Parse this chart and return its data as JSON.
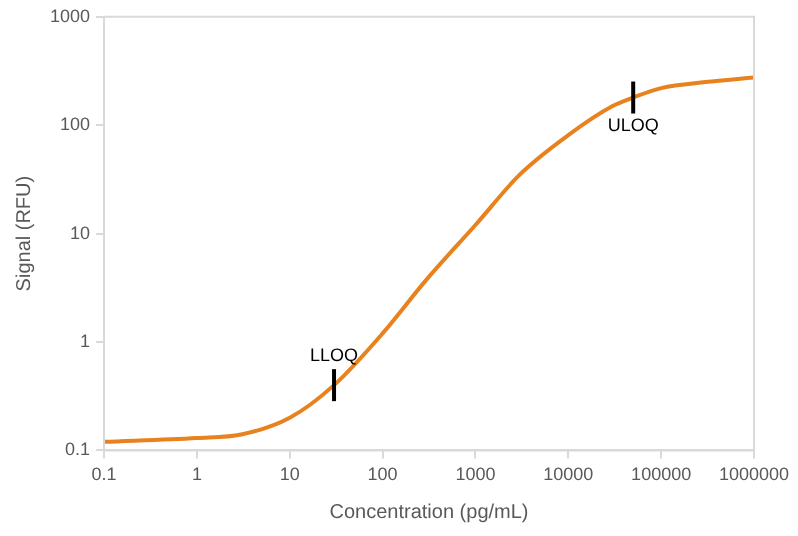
{
  "chart_data": {
    "type": "line",
    "xlabel": "Concentration (pg/mL)",
    "ylabel": "Signal (RFU)",
    "log": "xy",
    "grid": false,
    "legend": false,
    "marker": "none",
    "line_style": "solid",
    "xlim": [
      0.1,
      1000000
    ],
    "ylim": [
      0.1,
      1000
    ],
    "xticks": [
      0.1,
      1,
      10,
      100,
      1000,
      10000,
      100000,
      1000000
    ],
    "yticks": [
      0.1,
      1,
      10,
      100,
      1000
    ],
    "series": [
      {
        "color": "#e8821e",
        "x": [
          0.1,
          1,
          3,
          10,
          30,
          100,
          300,
          1000,
          3000,
          10000,
          30000,
          50000,
          100000,
          300000,
          1000000
        ],
        "values": [
          0.12,
          0.13,
          0.14,
          0.2,
          0.4,
          1.2,
          3.8,
          12,
          35,
          81,
          150,
          180,
          220,
          250,
          275
        ]
      }
    ],
    "annotations": [
      {
        "text": "LLOQ",
        "x": 30,
        "y": 0.4
      },
      {
        "text": "ULOQ",
        "x": 50000,
        "y": 180
      }
    ]
  }
}
